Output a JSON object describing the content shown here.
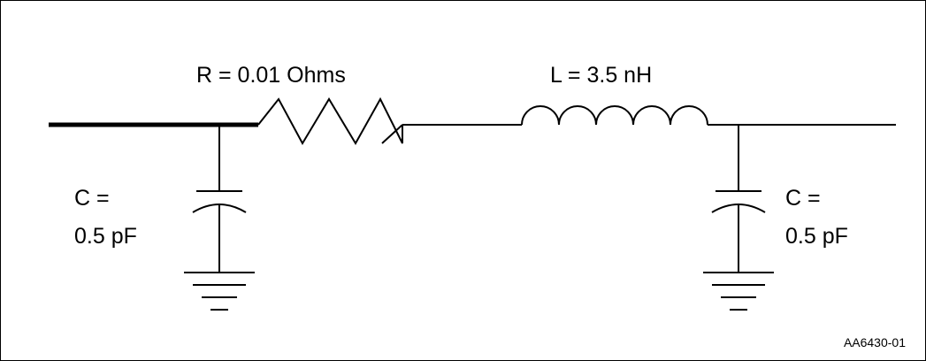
{
  "resistor": {
    "label": "R = 0.01 Ohms"
  },
  "inductor": {
    "label": "L = 3.5 nH"
  },
  "capacitor_left": {
    "line1": "C =",
    "line2": "0.5 pF"
  },
  "capacitor_right": {
    "line1": "C =",
    "line2": "0.5 pF"
  },
  "figure_id": "AA6430-01",
  "colors": {
    "stroke": "#000000",
    "background": "#ffffff"
  }
}
